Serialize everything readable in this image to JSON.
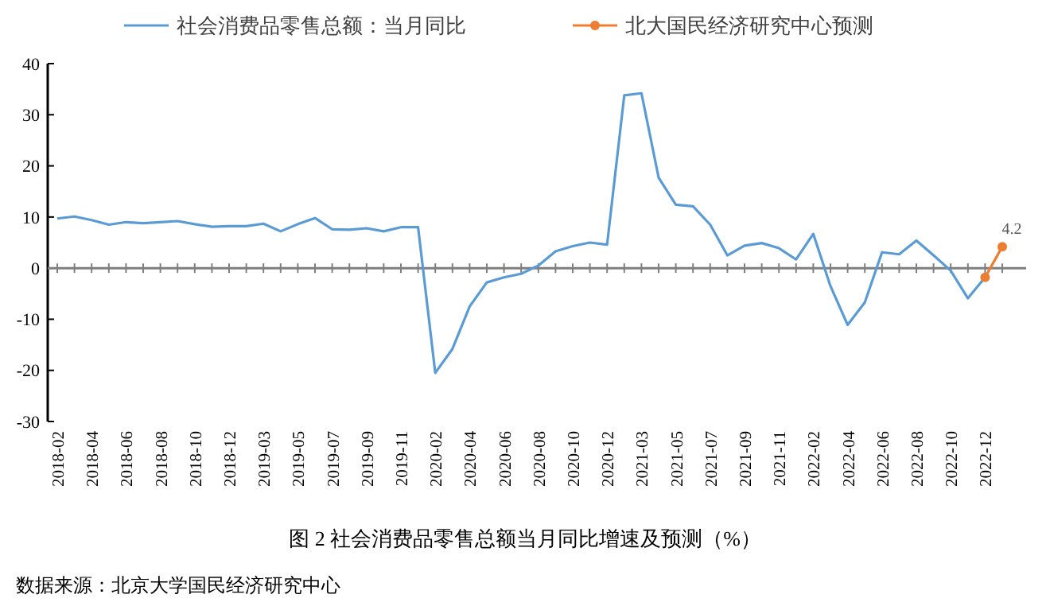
{
  "chart_data": {
    "type": "line",
    "title": "图 2 社会消费品零售总额当月同比增速及预测（%）",
    "annotations": [
      "数据来源：北京大学国民经济研究中心"
    ],
    "categories": [
      "2018-02",
      null,
      "2018-04",
      null,
      "2018-06",
      null,
      "2018-08",
      null,
      "2018-10",
      null,
      "2018-12",
      null,
      "2019-03",
      null,
      "2019-05",
      null,
      "2019-07",
      null,
      "2019-09",
      null,
      "2019-11",
      null,
      "2020-02",
      null,
      "2020-04",
      null,
      "2020-06",
      null,
      "2020-08",
      null,
      "2020-10",
      null,
      "2020-12",
      null,
      "2021-03",
      null,
      "2021-05",
      null,
      "2021-07",
      null,
      "2021-09",
      null,
      "2021-11",
      null,
      "2022-02",
      null,
      "2022-04",
      null,
      "2022-06",
      null,
      "2022-08",
      null,
      "2022-10",
      null,
      "2022-12",
      null
    ],
    "series": [
      {
        "name": "社会消费品零售总额：当月同比",
        "color": "#5b9bd5",
        "values": [
          9.7,
          10.1,
          9.4,
          8.5,
          9.0,
          8.8,
          9.0,
          9.2,
          8.6,
          8.1,
          8.2,
          8.2,
          8.7,
          7.2,
          8.6,
          9.8,
          7.6,
          7.5,
          7.8,
          7.2,
          8.0,
          8.0,
          -20.5,
          -15.8,
          -7.5,
          -2.8,
          -1.8,
          -1.1,
          0.5,
          3.3,
          4.3,
          5.0,
          4.6,
          33.8,
          34.2,
          17.7,
          12.4,
          12.1,
          8.5,
          2.5,
          4.4,
          4.9,
          3.9,
          1.7,
          6.7,
          -3.5,
          -11.1,
          -6.7,
          3.1,
          2.7,
          5.4,
          2.5,
          -0.5,
          -5.9,
          -1.8,
          null
        ]
      },
      {
        "name": "北大国民经济研究中心预测",
        "color": "#ed7d31",
        "marker": "circle",
        "values": [
          null,
          null,
          null,
          null,
          null,
          null,
          null,
          null,
          null,
          null,
          null,
          null,
          null,
          null,
          null,
          null,
          null,
          null,
          null,
          null,
          null,
          null,
          null,
          null,
          null,
          null,
          null,
          null,
          null,
          null,
          null,
          null,
          null,
          null,
          null,
          null,
          null,
          null,
          null,
          null,
          null,
          null,
          null,
          null,
          null,
          null,
          null,
          null,
          null,
          null,
          null,
          null,
          null,
          null,
          -1.8,
          4.2
        ],
        "value_labels": [
          null,
          null,
          null,
          null,
          null,
          null,
          null,
          null,
          null,
          null,
          null,
          null,
          null,
          null,
          null,
          null,
          null,
          null,
          null,
          null,
          null,
          null,
          null,
          null,
          null,
          null,
          null,
          null,
          null,
          null,
          null,
          null,
          null,
          null,
          null,
          null,
          null,
          null,
          null,
          null,
          null,
          null,
          null,
          null,
          null,
          null,
          null,
          null,
          null,
          null,
          null,
          null,
          null,
          null,
          null,
          "4.2"
        ]
      }
    ],
    "ref_lines": [
      {
        "axis": "y",
        "value": 0,
        "color": "#7f7f7f"
      }
    ],
    "ylim": [
      -30,
      40
    ],
    "yticks": [
      -30,
      -20,
      -10,
      0,
      10,
      20,
      30,
      40
    ],
    "grid": false,
    "legend": "top"
  }
}
